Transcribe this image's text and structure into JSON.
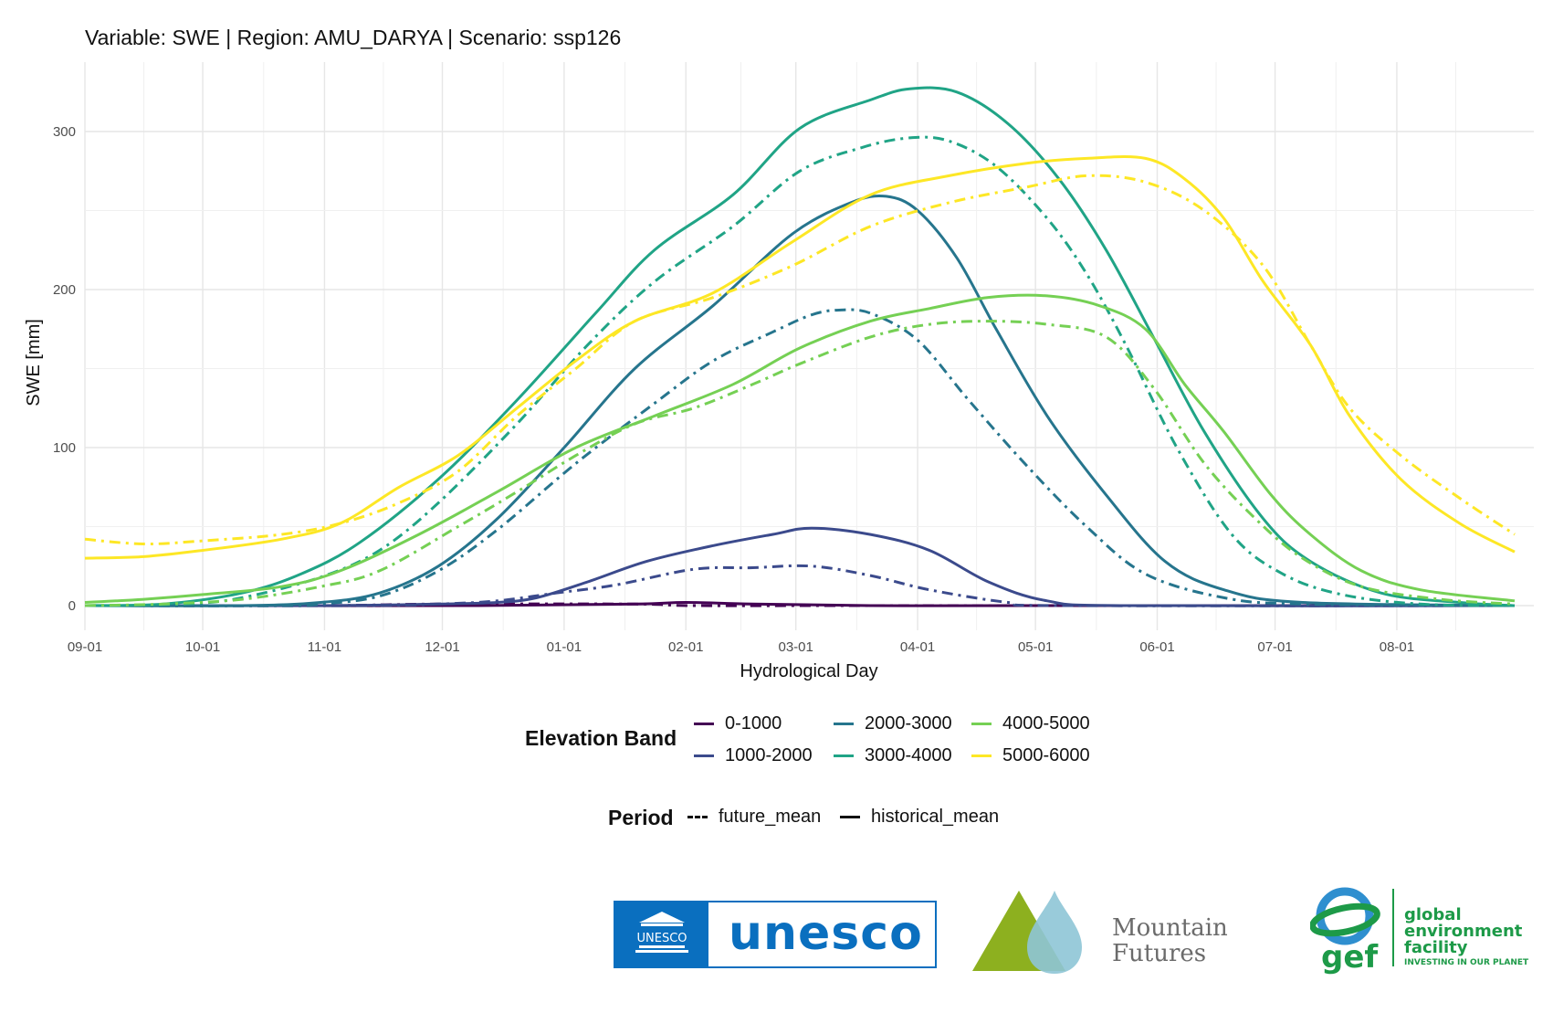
{
  "chart_data": {
    "type": "line",
    "title": "Variable: SWE | Region: AMU_DARYA | Scenario: ssp126",
    "xlabel": "Hydrological Day",
    "ylabel": "SWE [mm]",
    "xlim": [
      0,
      364
    ],
    "ylim": [
      -15,
      342
    ],
    "x_tick_positions": [
      0,
      30,
      61,
      91,
      122,
      153,
      181,
      212,
      242,
      273,
      303,
      334
    ],
    "x_tick_labels": [
      "09-01",
      "10-01",
      "11-01",
      "12-01",
      "01-01",
      "02-01",
      "03-01",
      "04-01",
      "05-01",
      "06-01",
      "07-01",
      "08-01"
    ],
    "y_ticks": [
      0,
      100,
      200,
      300
    ],
    "grid": true,
    "colors": {
      "0-1000": "#440154",
      "1000-2000": "#3b4a8c",
      "2000-3000": "#26758d",
      "3000-4000": "#20a486",
      "4000-5000": "#75d054",
      "5000-6000": "#fde725"
    },
    "series": [
      {
        "band": "0-1000",
        "period": "historical_mean",
        "points": [
          [
            0,
            0
          ],
          [
            40,
            0
          ],
          [
            100,
            0
          ],
          [
            140,
            1
          ],
          [
            153,
            2
          ],
          [
            170,
            1
          ],
          [
            200,
            0
          ],
          [
            240,
            0
          ],
          [
            364,
            0
          ]
        ]
      },
      {
        "band": "0-1000",
        "period": "future_mean",
        "points": [
          [
            0,
            0
          ],
          [
            60,
            0
          ],
          [
            90,
            1
          ],
          [
            140,
            1
          ],
          [
            155,
            0
          ],
          [
            200,
            0
          ],
          [
            364,
            0
          ]
        ]
      },
      {
        "band": "1000-2000",
        "period": "historical_mean",
        "points": [
          [
            0,
            0
          ],
          [
            60,
            0
          ],
          [
            90,
            1
          ],
          [
            105,
            2
          ],
          [
            115,
            5
          ],
          [
            128,
            15
          ],
          [
            143,
            28
          ],
          [
            160,
            38
          ],
          [
            175,
            45
          ],
          [
            185,
            49
          ],
          [
            200,
            45
          ],
          [
            215,
            35
          ],
          [
            230,
            15
          ],
          [
            245,
            3
          ],
          [
            265,
            0
          ],
          [
            364,
            0
          ]
        ]
      },
      {
        "band": "1000-2000",
        "period": "future_mean",
        "points": [
          [
            0,
            0
          ],
          [
            70,
            0
          ],
          [
            90,
            1
          ],
          [
            105,
            3
          ],
          [
            120,
            8
          ],
          [
            135,
            13
          ],
          [
            155,
            23
          ],
          [
            170,
            24
          ],
          [
            185,
            25
          ],
          [
            200,
            19
          ],
          [
            215,
            10
          ],
          [
            235,
            2
          ],
          [
            250,
            0
          ],
          [
            364,
            0
          ]
        ]
      },
      {
        "band": "2000-3000",
        "period": "historical_mean",
        "points": [
          [
            0,
            0
          ],
          [
            40,
            0
          ],
          [
            60,
            2
          ],
          [
            75,
            8
          ],
          [
            90,
            25
          ],
          [
            105,
            55
          ],
          [
            122,
            100
          ],
          [
            140,
            150
          ],
          [
            160,
            190
          ],
          [
            180,
            235
          ],
          [
            195,
            255
          ],
          [
            204,
            259
          ],
          [
            212,
            250
          ],
          [
            222,
            220
          ],
          [
            232,
            175
          ],
          [
            245,
            120
          ],
          [
            260,
            70
          ],
          [
            275,
            28
          ],
          [
            290,
            10
          ],
          [
            310,
            2
          ],
          [
            364,
            0
          ]
        ]
      },
      {
        "band": "2000-3000",
        "period": "future_mean",
        "points": [
          [
            0,
            0
          ],
          [
            50,
            0
          ],
          [
            60,
            1
          ],
          [
            75,
            6
          ],
          [
            90,
            22
          ],
          [
            105,
            48
          ],
          [
            125,
            90
          ],
          [
            145,
            128
          ],
          [
            160,
            155
          ],
          [
            175,
            173
          ],
          [
            185,
            184
          ],
          [
            192,
            187
          ],
          [
            200,
            185
          ],
          [
            212,
            168
          ],
          [
            225,
            130
          ],
          [
            240,
            88
          ],
          [
            255,
            50
          ],
          [
            270,
            20
          ],
          [
            290,
            5
          ],
          [
            310,
            1
          ],
          [
            364,
            0
          ]
        ]
      },
      {
        "band": "3000-4000",
        "period": "historical_mean",
        "points": [
          [
            0,
            0
          ],
          [
            20,
            1
          ],
          [
            40,
            8
          ],
          [
            55,
            20
          ],
          [
            70,
            40
          ],
          [
            90,
            80
          ],
          [
            110,
            130
          ],
          [
            130,
            185
          ],
          [
            145,
            225
          ],
          [
            165,
            260
          ],
          [
            182,
            302
          ],
          [
            200,
            320
          ],
          [
            210,
            327
          ],
          [
            222,
            325
          ],
          [
            235,
            305
          ],
          [
            248,
            270
          ],
          [
            260,
            225
          ],
          [
            272,
            170
          ],
          [
            285,
            110
          ],
          [
            300,
            55
          ],
          [
            312,
            28
          ],
          [
            330,
            8
          ],
          [
            350,
            2
          ],
          [
            364,
            0
          ]
        ]
      },
      {
        "band": "3000-4000",
        "period": "future_mean",
        "points": [
          [
            0,
            0
          ],
          [
            25,
            1
          ],
          [
            40,
            5
          ],
          [
            60,
            18
          ],
          [
            75,
            35
          ],
          [
            90,
            65
          ],
          [
            110,
            115
          ],
          [
            128,
            165
          ],
          [
            145,
            205
          ],
          [
            165,
            240
          ],
          [
            182,
            275
          ],
          [
            198,
            290
          ],
          [
            210,
            296
          ],
          [
            220,
            294
          ],
          [
            232,
            278
          ],
          [
            245,
            245
          ],
          [
            255,
            210
          ],
          [
            265,
            165
          ],
          [
            278,
            100
          ],
          [
            292,
            45
          ],
          [
            305,
            20
          ],
          [
            320,
            7
          ],
          [
            340,
            1
          ],
          [
            364,
            0
          ]
        ]
      },
      {
        "band": "4000-5000",
        "period": "historical_mean",
        "points": [
          [
            0,
            2
          ],
          [
            15,
            4
          ],
          [
            30,
            7
          ],
          [
            50,
            12
          ],
          [
            65,
            22
          ],
          [
            85,
            45
          ],
          [
            105,
            72
          ],
          [
            125,
            100
          ],
          [
            145,
            120
          ],
          [
            165,
            140
          ],
          [
            182,
            163
          ],
          [
            200,
            180
          ],
          [
            215,
            188
          ],
          [
            230,
            195
          ],
          [
            245,
            196
          ],
          [
            258,
            190
          ],
          [
            270,
            175
          ],
          [
            280,
            140
          ],
          [
            290,
            110
          ],
          [
            302,
            70
          ],
          [
            312,
            45
          ],
          [
            325,
            22
          ],
          [
            340,
            10
          ],
          [
            364,
            3
          ]
        ]
      },
      {
        "band": "4000-5000",
        "period": "future_mean",
        "points": [
          [
            0,
            0
          ],
          [
            20,
            1
          ],
          [
            40,
            4
          ],
          [
            60,
            12
          ],
          [
            75,
            22
          ],
          [
            95,
            50
          ],
          [
            110,
            72
          ],
          [
            125,
            95
          ],
          [
            140,
            115
          ],
          [
            155,
            125
          ],
          [
            170,
            140
          ],
          [
            182,
            153
          ],
          [
            200,
            170
          ],
          [
            215,
            178
          ],
          [
            230,
            180
          ],
          [
            245,
            178
          ],
          [
            260,
            170
          ],
          [
            272,
            138
          ],
          [
            285,
            90
          ],
          [
            298,
            55
          ],
          [
            310,
            30
          ],
          [
            325,
            12
          ],
          [
            345,
            4
          ],
          [
            364,
            1
          ]
        ]
      },
      {
        "band": "5000-6000",
        "period": "historical_mean",
        "points": [
          [
            0,
            30
          ],
          [
            15,
            31
          ],
          [
            30,
            35
          ],
          [
            50,
            42
          ],
          [
            65,
            52
          ],
          [
            80,
            75
          ],
          [
            95,
            95
          ],
          [
            110,
            125
          ],
          [
            125,
            155
          ],
          [
            140,
            180
          ],
          [
            160,
            198
          ],
          [
            180,
            230
          ],
          [
            200,
            260
          ],
          [
            220,
            272
          ],
          [
            240,
            280
          ],
          [
            255,
            283
          ],
          [
            270,
            283
          ],
          [
            280,
            270
          ],
          [
            290,
            245
          ],
          [
            300,
            205
          ],
          [
            312,
            165
          ],
          [
            322,
            120
          ],
          [
            335,
            80
          ],
          [
            350,
            52
          ],
          [
            364,
            34
          ]
        ]
      },
      {
        "band": "5000-6000",
        "period": "future_mean",
        "points": [
          [
            0,
            42
          ],
          [
            15,
            39
          ],
          [
            30,
            41
          ],
          [
            50,
            45
          ],
          [
            65,
            52
          ],
          [
            80,
            65
          ],
          [
            95,
            85
          ],
          [
            110,
            120
          ],
          [
            125,
            150
          ],
          [
            140,
            180
          ],
          [
            160,
            195
          ],
          [
            180,
            215
          ],
          [
            200,
            240
          ],
          [
            220,
            255
          ],
          [
            240,
            265
          ],
          [
            255,
            272
          ],
          [
            270,
            268
          ],
          [
            285,
            250
          ],
          [
            300,
            215
          ],
          [
            312,
            165
          ],
          [
            322,
            125
          ],
          [
            335,
            95
          ],
          [
            350,
            68
          ],
          [
            364,
            45
          ]
        ]
      }
    ]
  },
  "legend": {
    "band_title": "Elevation Band",
    "bands": [
      "0-1000",
      "1000-2000",
      "2000-3000",
      "3000-4000",
      "4000-5000",
      "5000-6000"
    ],
    "period_title": "Period",
    "periods": [
      "future_mean",
      "historical_mean"
    ]
  },
  "logos": {
    "unesco": "unesco",
    "unesco_temple_text": "UNESCO",
    "mountain_futures_line1": "Mountain",
    "mountain_futures_line2": "Futures",
    "gef_word": "gef",
    "gef_line1": "global",
    "gef_line2": "environment",
    "gef_line3": "facility",
    "gef_tagline": "INVESTING IN OUR PLANET"
  }
}
